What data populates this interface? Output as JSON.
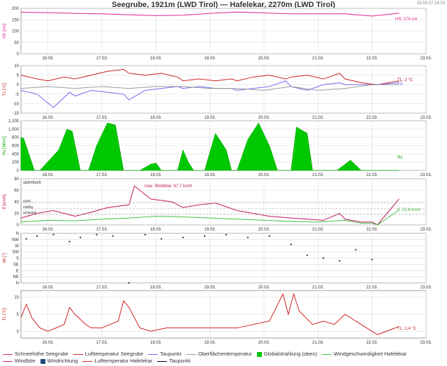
{
  "title": "Seegrube, 1921m (LWD Tirol) — Hafelekar, 2270m (LWD Tirol)",
  "timestamp": "22.03.17 14:23",
  "x_ticks": [
    "16.03.",
    "17.03.",
    "18.03.",
    "19.03.",
    "20.03.",
    "21.03.",
    "22.03.",
    "23.03."
  ],
  "colors": {
    "snow": "#e0238a",
    "temp_seegrube": "#d02020",
    "dewpoint": "#6a6af0",
    "surface": "#9a9a9a",
    "radiation": "#00c800",
    "wind_hafelekar": "#40c040",
    "gust": "#c0185a",
    "winddir": "#1a4e7a",
    "temp_hafelekar": "#d02020",
    "dewpoint_hafelekar": "#000000"
  },
  "legend": [
    {
      "label": "Schneehöhe Seegrube",
      "color": "#e0238a",
      "kind": "line"
    },
    {
      "label": "Lufttemperatur Seegrube",
      "color": "#d02020",
      "kind": "line"
    },
    {
      "label": "Taupunkt",
      "color": "#6a6af0",
      "kind": "line"
    },
    {
      "label": "Oberflächentemperatur",
      "color": "#9a9a9a",
      "kind": "line"
    },
    {
      "label": "Globalstrahlung (oben)",
      "color": "#00c800",
      "kind": "area"
    },
    {
      "label": "Windgeschwindigkeit Hafelekar",
      "color": "#40c040",
      "kind": "line"
    },
    {
      "label": "Windböe",
      "color": "#c0185a",
      "kind": "line"
    },
    {
      "label": "Windrichtung",
      "color": "#1a4e7a",
      "kind": "dot"
    },
    {
      "label": "Lufttemperatur Hafelekar",
      "color": "#d02020",
      "kind": "line"
    },
    {
      "label": "Taupunkt",
      "color": "#000000",
      "kind": "line"
    }
  ],
  "chart_data": [
    {
      "type": "line",
      "ylabel": "HS [cm]",
      "ylim": [
        0,
        200
      ],
      "yticks": [
        0,
        50,
        100,
        150,
        200
      ],
      "grid": true,
      "annotations": [
        "HS: 179 cm"
      ],
      "series": [
        {
          "name": "Schneehöhe Seegrube",
          "x": [
            0,
            0.5,
            1,
            1.5,
            2,
            2.5,
            3,
            3.5,
            4,
            4.5,
            5,
            5.5,
            6,
            6.5,
            7
          ],
          "values": [
            183,
            181,
            178,
            176,
            172,
            168,
            170,
            178,
            184,
            180,
            176,
            176,
            176,
            166,
            179
          ]
        }
      ]
    },
    {
      "type": "line",
      "ylabel": "TL [°C]",
      "ylim": [
        -15,
        10
      ],
      "yticks": [
        -15,
        -10,
        -5,
        0,
        5,
        10
      ],
      "grid": true,
      "annotations": [
        "TL: 2 °C",
        "TS"
      ],
      "series": [
        {
          "name": "Lufttemperatur Seegrube",
          "x": [
            0,
            0.3,
            0.5,
            0.8,
            1,
            1.3,
            1.6,
            1.9,
            2,
            2.3,
            2.6,
            2.9,
            3,
            3.3,
            3.6,
            3.9,
            4,
            4.3,
            4.6,
            4.9,
            5,
            5.3,
            5.6,
            5.9,
            6,
            6.3,
            6.6,
            7
          ],
          "values": [
            5,
            3,
            2,
            4,
            3,
            5,
            7,
            8,
            6,
            5,
            6,
            4,
            2,
            3,
            2,
            3,
            2,
            4,
            5,
            3,
            4,
            5,
            3,
            6,
            3,
            1,
            0,
            2
          ]
        },
        {
          "name": "Taupunkt",
          "x": [
            0,
            0.3,
            0.6,
            0.9,
            1,
            1.3,
            1.6,
            1.9,
            2,
            2.3,
            2.6,
            2.9,
            3,
            3.3,
            3.6,
            3.9,
            4,
            4.3,
            4.6,
            4.9,
            5,
            5.3,
            5.6,
            5.9,
            6,
            6.3,
            6.6,
            7
          ],
          "values": [
            -3,
            -5,
            -12,
            -4,
            -6,
            -3,
            -4,
            -5,
            -8,
            -3,
            -2,
            -1,
            -2,
            -1,
            -2,
            -2,
            -3,
            -2,
            -1,
            2,
            -1,
            -3,
            0,
            1,
            0,
            0,
            0,
            1
          ]
        },
        {
          "name": "Oberflächentemperatur",
          "x": [
            0,
            0.5,
            1,
            1.5,
            2,
            2.5,
            3,
            3.5,
            4,
            4.5,
            5,
            5.5,
            6,
            6.5,
            7
          ],
          "values": [
            -2,
            -1,
            -2,
            -1,
            -2,
            -1,
            -1,
            -2,
            -2,
            -3,
            -1,
            -3,
            -2,
            0,
            0
          ]
        }
      ]
    },
    {
      "type": "area",
      "ylabel": "Rs [W/m²]",
      "ylim": [
        0,
        1200
      ],
      "yticks": [
        0,
        200,
        400,
        600,
        800,
        1000,
        1200
      ],
      "grid": true,
      "annotations": [
        "Rs"
      ],
      "series": [
        {
          "name": "Globalstrahlung (oben)",
          "x": [
            0,
            0.05,
            0.25,
            0.35,
            0.7,
            0.85,
            0.95,
            1.1,
            1.25,
            1.4,
            1.6,
            1.75,
            1.9,
            2,
            2.1,
            2.2,
            2.4,
            2.5,
            2.6,
            2.7,
            2.75,
            2.8,
            2.9,
            3,
            3.1,
            3.2,
            3.4,
            3.6,
            3.8,
            3.9,
            4,
            4.2,
            4.4,
            4.6,
            4.75,
            4.85,
            5,
            5.1,
            5.3,
            5.4,
            5.5,
            5.6,
            5.75,
            5.85,
            6,
            6.1,
            6.3,
            6.35,
            6.4,
            6.45,
            6.5,
            7
          ],
          "values": [
            800,
            780,
            0,
            0,
            500,
            1000,
            950,
            0,
            0,
            600,
            1150,
            1100,
            0,
            0,
            0,
            0,
            150,
            180,
            0,
            0,
            0,
            0,
            0,
            500,
            200,
            0,
            0,
            900,
            500,
            0,
            0,
            750,
            1150,
            600,
            0,
            0,
            0,
            1050,
            900,
            0,
            0,
            0,
            0,
            0,
            150,
            250,
            0,
            0,
            0,
            0,
            0,
            0
          ]
        }
      ]
    },
    {
      "type": "line",
      "ylabel": "ff [km/h]",
      "ylim": [
        0,
        80
      ],
      "yticks": [
        0,
        20,
        40,
        60,
        80
      ],
      "grid": true,
      "annotations": [
        "stürmisch",
        "max. Windböe: 67,7 km/h",
        "ff: 25,6 km/h"
      ],
      "category_labels": [
        "stark",
        "mäßig",
        "schwach"
      ],
      "series": [
        {
          "name": "Windböe",
          "x": [
            0,
            0.3,
            0.6,
            1,
            1.3,
            1.6,
            2,
            2.1,
            2.4,
            2.8,
            3,
            3.3,
            3.6,
            4,
            4.3,
            4.6,
            5,
            5.3,
            5.6,
            5.9,
            6,
            6.3,
            6.5,
            6.6,
            7
          ],
          "values": [
            12,
            20,
            25,
            15,
            22,
            30,
            35,
            67.7,
            45,
            40,
            30,
            35,
            38,
            25,
            20,
            15,
            12,
            10,
            8,
            20,
            10,
            5,
            5,
            0,
            45
          ]
        },
        {
          "name": "Windgeschwindigkeit Hafelekar",
          "x": [
            0,
            0.5,
            1,
            1.5,
            2,
            2.5,
            3,
            3.5,
            4,
            4.5,
            5,
            5.5,
            6,
            6.3,
            6.5,
            6.6,
            7
          ],
          "values": [
            5,
            8,
            7,
            10,
            12,
            15,
            14,
            12,
            10,
            8,
            6,
            5,
            8,
            3,
            3,
            0,
            25.6
          ]
        }
      ]
    },
    {
      "type": "scatter",
      "ylabel": "dd [°]",
      "yticks": [
        "N",
        "NE",
        "E",
        "SE",
        "S",
        "SW",
        "W",
        "NW",
        "N"
      ],
      "grid": true,
      "series": [
        {
          "name": "Windrichtung",
          "x": [
            0.1,
            0.3,
            0.6,
            0.9,
            1.1,
            1.4,
            1.7,
            2,
            2.3,
            2.6,
            3,
            3.4,
            3.8,
            4.2,
            4.6,
            5,
            5.3,
            5.6,
            5.9,
            6.2,
            6.5
          ],
          "values": [
            320,
            340,
            350,
            300,
            330,
            350,
            340,
            0,
            350,
            320,
            330,
            340,
            350,
            330,
            340,
            280,
            200,
            180,
            160,
            240,
            170
          ]
        }
      ]
    },
    {
      "type": "line",
      "ylabel": "TL [°C]",
      "ylim": [
        -2,
        12
      ],
      "yticks": [
        0,
        5,
        10
      ],
      "grid": true,
      "annotations": [
        "TL: 1,4 °C"
      ],
      "series": [
        {
          "name": "Lufttemperatur Hafelekar",
          "x": [
            0,
            0.1,
            0.2,
            0.35,
            0.5,
            0.8,
            0.9,
            1,
            1.2,
            1.3,
            1.5,
            1.8,
            1.9,
            2,
            2.2,
            2.4,
            2.7,
            3,
            3.3,
            3.7,
            4,
            4.3,
            4.6,
            4.85,
            4.95,
            5.05,
            5.15,
            5.4,
            5.6,
            5.8,
            6,
            6.2,
            6.4,
            6.5,
            6.6,
            7
          ],
          "values": [
            4,
            8,
            4,
            1,
            0,
            2,
            7,
            5,
            2,
            1,
            1,
            3,
            9,
            7,
            1,
            0,
            1,
            1,
            1,
            1,
            1,
            2,
            3,
            11,
            5,
            11,
            6,
            2,
            3,
            2,
            5,
            3,
            1,
            0,
            -1,
            1.4
          ]
        }
      ]
    }
  ]
}
